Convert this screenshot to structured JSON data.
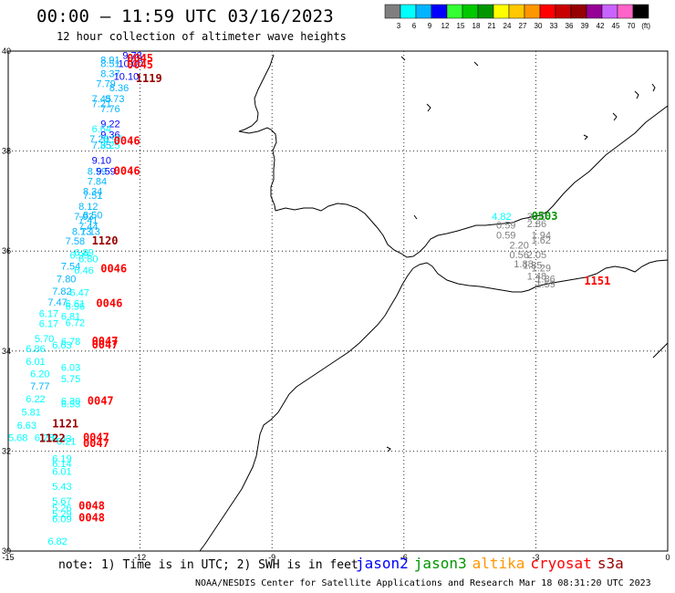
{
  "header": {
    "title": "00:00 – 11:59 UTC 03/16/2023",
    "subtitle": "12 hour collection of altimeter wave heights"
  },
  "colorbar": {
    "unit": "(ft)",
    "bins": [
      {
        "label": "3",
        "color": "#7f7f7f"
      },
      {
        "label": "6",
        "color": "#00ffff"
      },
      {
        "label": "9",
        "color": "#00b4ff"
      },
      {
        "label": "12",
        "color": "#0000ff"
      },
      {
        "label": "15",
        "color": "#33ff33"
      },
      {
        "label": "18",
        "color": "#00c800"
      },
      {
        "label": "21",
        "color": "#009600"
      },
      {
        "label": "24",
        "color": "#ffff00"
      },
      {
        "label": "27",
        "color": "#ffc800"
      },
      {
        "label": "30",
        "color": "#ff9600"
      },
      {
        "label": "33",
        "color": "#ff0000"
      },
      {
        "label": "36",
        "color": "#c80000"
      },
      {
        "label": "39",
        "color": "#960000"
      },
      {
        "label": "42",
        "color": "#960096"
      },
      {
        "label": "45",
        "color": "#c864ff"
      },
      {
        "label": "70",
        "color": "#ff64c8"
      },
      {
        "label": "",
        "color": "#000000"
      }
    ]
  },
  "axes": {
    "x_ticks": [
      "-15",
      "-12",
      "-9",
      "-6",
      "-3",
      "0"
    ],
    "y_ticks": [
      "40",
      "38",
      "36",
      "34",
      "32",
      "30"
    ],
    "xlim": [
      -15,
      0
    ],
    "ylim": [
      30,
      40
    ]
  },
  "footer": {
    "note": "note: 1) Time is in UTC; 2) SWH is in feet",
    "credit": "NOAA/NESDIS Center for Satellite Applications and Research   Mar 18 08:31:20 UTC 2023"
  },
  "legend": {
    "satellites": [
      {
        "name": "jason2",
        "color": "#0000ff"
      },
      {
        "name": "jason3",
        "color": "#009600"
      },
      {
        "name": "altika",
        "color": "#ff9600"
      },
      {
        "name": "cryosat",
        "color": "#ff0000"
      },
      {
        "name": "s3a",
        "color": "#960000"
      }
    ]
  },
  "chart_data": {
    "type": "scatter",
    "observations": [
      {
        "lon": -12.4,
        "lat": 39.92,
        "v": "9.78",
        "c": "#0000ff"
      },
      {
        "lon": -12.9,
        "lat": 39.83,
        "v": "8.91",
        "c": "#00b4ff"
      },
      {
        "lon": -12.9,
        "lat": 39.75,
        "v": "8.51",
        "c": "#00b4ff"
      },
      {
        "lon": -12.5,
        "lat": 39.75,
        "v": "10.00",
        "c": "#0000ff"
      },
      {
        "lon": -12.9,
        "lat": 39.55,
        "v": "8.37",
        "c": "#00b4ff"
      },
      {
        "lon": -12.6,
        "lat": 39.5,
        "v": "10.10",
        "c": "#0000ff"
      },
      {
        "lon": -13.0,
        "lat": 39.35,
        "v": "7.79",
        "c": "#00b4ff"
      },
      {
        "lon": -12.7,
        "lat": 39.27,
        "v": "8.36",
        "c": "#00b4ff"
      },
      {
        "lon": -13.1,
        "lat": 39.05,
        "v": "7.45",
        "c": "#00b4ff"
      },
      {
        "lon": -12.8,
        "lat": 39.05,
        "v": "8.73",
        "c": "#00b4ff"
      },
      {
        "lon": -13.1,
        "lat": 38.95,
        "v": "7.21",
        "c": "#00b4ff"
      },
      {
        "lon": -12.9,
        "lat": 38.85,
        "v": "7.76",
        "c": "#00b4ff"
      },
      {
        "lon": -12.9,
        "lat": 38.55,
        "v": "9.22",
        "c": "#0000ff"
      },
      {
        "lon": -13.1,
        "lat": 38.45,
        "v": "6.64",
        "c": "#00ffff"
      },
      {
        "lon": -12.9,
        "lat": 38.33,
        "v": "9.36",
        "c": "#0000ff"
      },
      {
        "lon": -13.15,
        "lat": 38.25,
        "v": "7.20",
        "c": "#00b4ff"
      },
      {
        "lon": -12.85,
        "lat": 38.25,
        "v": "6.97",
        "c": "#00ffff"
      },
      {
        "lon": -13.1,
        "lat": 38.12,
        "v": "7.35",
        "c": "#00b4ff"
      },
      {
        "lon": -12.9,
        "lat": 38.12,
        "v": "6.25",
        "c": "#00ffff"
      },
      {
        "lon": -13.1,
        "lat": 37.82,
        "v": "9.10",
        "c": "#0000ff"
      },
      {
        "lon": -13.2,
        "lat": 37.6,
        "v": "8.59",
        "c": "#00b4ff"
      },
      {
        "lon": -13.0,
        "lat": 37.6,
        "v": "9.59",
        "c": "#0000ff"
      },
      {
        "lon": -13.2,
        "lat": 37.4,
        "v": "7.84",
        "c": "#00b4ff"
      },
      {
        "lon": -13.3,
        "lat": 37.2,
        "v": "8.34",
        "c": "#00b4ff"
      },
      {
        "lon": -13.3,
        "lat": 37.12,
        "v": "7.51",
        "c": "#00b4ff"
      },
      {
        "lon": -13.4,
        "lat": 36.9,
        "v": "8.12",
        "c": "#00b4ff"
      },
      {
        "lon": -13.5,
        "lat": 36.7,
        "v": "7.93",
        "c": "#00b4ff"
      },
      {
        "lon": -13.3,
        "lat": 36.72,
        "v": "8.50",
        "c": "#00b4ff"
      },
      {
        "lon": -13.4,
        "lat": 36.62,
        "v": "7.41",
        "c": "#00b4ff"
      },
      {
        "lon": -13.4,
        "lat": 36.5,
        "v": "7.44",
        "c": "#00b4ff"
      },
      {
        "lon": -13.55,
        "lat": 36.4,
        "v": "8.13",
        "c": "#00b4ff"
      },
      {
        "lon": -13.35,
        "lat": 36.4,
        "v": "7.13",
        "c": "#00b4ff"
      },
      {
        "lon": -13.7,
        "lat": 36.2,
        "v": "7.58",
        "c": "#00b4ff"
      },
      {
        "lon": -13.5,
        "lat": 35.98,
        "v": "6.89",
        "c": "#00ffff"
      },
      {
        "lon": -13.6,
        "lat": 35.92,
        "v": "6.99",
        "c": "#00ffff"
      },
      {
        "lon": -13.4,
        "lat": 35.85,
        "v": "6.80",
        "c": "#00ffff"
      },
      {
        "lon": -13.8,
        "lat": 35.7,
        "v": "7.54",
        "c": "#00b4ff"
      },
      {
        "lon": -13.5,
        "lat": 35.62,
        "v": "6.46",
        "c": "#00ffff"
      },
      {
        "lon": -13.9,
        "lat": 35.45,
        "v": "7.80",
        "c": "#00b4ff"
      },
      {
        "lon": -14.0,
        "lat": 35.2,
        "v": "7.82",
        "c": "#00b4ff"
      },
      {
        "lon": -13.6,
        "lat": 35.17,
        "v": "6.47",
        "c": "#00ffff"
      },
      {
        "lon": -14.1,
        "lat": 34.98,
        "v": "7.47",
        "c": "#00b4ff"
      },
      {
        "lon": -13.7,
        "lat": 34.95,
        "v": "6.61",
        "c": "#00ffff"
      },
      {
        "lon": -13.7,
        "lat": 34.9,
        "v": "6.96",
        "c": "#00ffff"
      },
      {
        "lon": -14.3,
        "lat": 34.75,
        "v": "6.17",
        "c": "#00ffff"
      },
      {
        "lon": -13.8,
        "lat": 34.7,
        "v": "6.81",
        "c": "#00ffff"
      },
      {
        "lon": -14.3,
        "lat": 34.55,
        "v": "6.17",
        "c": "#00ffff"
      },
      {
        "lon": -13.7,
        "lat": 34.57,
        "v": "6.72",
        "c": "#00ffff"
      },
      {
        "lon": -14.4,
        "lat": 34.25,
        "v": "5.70",
        "c": "#00ffff"
      },
      {
        "lon": -13.8,
        "lat": 34.2,
        "v": "6.78",
        "c": "#00ffff"
      },
      {
        "lon": -14.6,
        "lat": 34.05,
        "v": "6.86",
        "c": "#00ffff"
      },
      {
        "lon": -14.0,
        "lat": 34.12,
        "v": "6.63",
        "c": "#00ffff"
      },
      {
        "lon": -14.6,
        "lat": 33.8,
        "v": "6.01",
        "c": "#00ffff"
      },
      {
        "lon": -14.5,
        "lat": 33.55,
        "v": "6.20",
        "c": "#00ffff"
      },
      {
        "lon": -13.8,
        "lat": 33.68,
        "v": "6.03",
        "c": "#00ffff"
      },
      {
        "lon": -13.8,
        "lat": 33.45,
        "v": "5.75",
        "c": "#00ffff"
      },
      {
        "lon": -14.5,
        "lat": 33.3,
        "v": "7.77",
        "c": "#00b4ff"
      },
      {
        "lon": -14.6,
        "lat": 33.05,
        "v": "6.22",
        "c": "#00ffff"
      },
      {
        "lon": -13.8,
        "lat": 33.0,
        "v": "6.30",
        "c": "#00ffff"
      },
      {
        "lon": -13.8,
        "lat": 32.95,
        "v": "6.53",
        "c": "#00ffff"
      },
      {
        "lon": -14.7,
        "lat": 32.78,
        "v": "5.81",
        "c": "#00ffff"
      },
      {
        "lon": -14.8,
        "lat": 32.52,
        "v": "6.63",
        "c": "#00ffff"
      },
      {
        "lon": -15.0,
        "lat": 32.27,
        "v": "5.68",
        "c": "#00ffff"
      },
      {
        "lon": -14.4,
        "lat": 32.27,
        "v": "6.28",
        "c": "#00ffff"
      },
      {
        "lon": -14.0,
        "lat": 32.25,
        "v": "6.43",
        "c": "#00ffff"
      },
      {
        "lon": -13.9,
        "lat": 32.2,
        "v": "6.21",
        "c": "#00ffff"
      },
      {
        "lon": -14.0,
        "lat": 31.85,
        "v": "6.19",
        "c": "#00ffff"
      },
      {
        "lon": -14.0,
        "lat": 31.75,
        "v": "6.14",
        "c": "#00ffff"
      },
      {
        "lon": -14.0,
        "lat": 31.6,
        "v": "6.01",
        "c": "#00ffff"
      },
      {
        "lon": -14.0,
        "lat": 31.3,
        "v": "5.43",
        "c": "#00ffff"
      },
      {
        "lon": -14.0,
        "lat": 31.0,
        "v": "5.67",
        "c": "#00ffff"
      },
      {
        "lon": -14.0,
        "lat": 30.87,
        "v": "5.26",
        "c": "#00ffff"
      },
      {
        "lon": -14.0,
        "lat": 30.75,
        "v": "5.29",
        "c": "#00ffff"
      },
      {
        "lon": -14.0,
        "lat": 30.65,
        "v": "6.09",
        "c": "#00ffff"
      },
      {
        "lon": -14.1,
        "lat": 30.2,
        "v": "6.82",
        "c": "#00ffff"
      },
      {
        "lon": -4.0,
        "lat": 36.7,
        "v": "4.82",
        "c": "#00ffff"
      },
      {
        "lon": -3.2,
        "lat": 36.7,
        "v": "3.00",
        "c": "#7f7f7f"
      },
      {
        "lon": -3.2,
        "lat": 36.55,
        "v": "2.86",
        "c": "#7f7f7f"
      },
      {
        "lon": -3.9,
        "lat": 36.52,
        "v": "0.59",
        "c": "#7f7f7f"
      },
      {
        "lon": -3.9,
        "lat": 36.32,
        "v": "0.59",
        "c": "#7f7f7f"
      },
      {
        "lon": -3.1,
        "lat": 36.32,
        "v": "1.94",
        "c": "#7f7f7f"
      },
      {
        "lon": -3.1,
        "lat": 36.22,
        "v": "1.62",
        "c": "#7f7f7f"
      },
      {
        "lon": -3.6,
        "lat": 36.12,
        "v": "2.20",
        "c": "#7f7f7f"
      },
      {
        "lon": -3.6,
        "lat": 35.93,
        "v": "0.56",
        "c": "#7f7f7f"
      },
      {
        "lon": -3.2,
        "lat": 35.93,
        "v": "2.05",
        "c": "#7f7f7f"
      },
      {
        "lon": -3.5,
        "lat": 35.75,
        "v": "1.88",
        "c": "#7f7f7f"
      },
      {
        "lon": -3.3,
        "lat": 35.72,
        "v": "1.85",
        "c": "#7f7f7f"
      },
      {
        "lon": -3.1,
        "lat": 35.67,
        "v": "1.29",
        "c": "#7f7f7f"
      },
      {
        "lon": -3.2,
        "lat": 35.5,
        "v": "1.48",
        "c": "#7f7f7f"
      },
      {
        "lon": -3.0,
        "lat": 35.45,
        "v": "1.86",
        "c": "#7f7f7f"
      },
      {
        "lon": -3.0,
        "lat": 35.35,
        "v": "1.59",
        "c": "#7f7f7f"
      }
    ],
    "passes": [
      {
        "lon": -12.3,
        "lat": 39.85,
        "t": "0045",
        "c": "#ff0000"
      },
      {
        "lon": -12.3,
        "lat": 39.73,
        "t": "0045",
        "c": "#ff0000"
      },
      {
        "lon": -12.1,
        "lat": 39.45,
        "t": "1119",
        "c": "#960000"
      },
      {
        "lon": -12.6,
        "lat": 38.2,
        "t": "0046",
        "c": "#ff0000"
      },
      {
        "lon": -12.6,
        "lat": 37.6,
        "t": "0046",
        "c": "#ff0000"
      },
      {
        "lon": -13.1,
        "lat": 36.2,
        "t": "1120",
        "c": "#960000"
      },
      {
        "lon": -12.9,
        "lat": 35.65,
        "t": "0046",
        "c": "#ff0000"
      },
      {
        "lon": -13.0,
        "lat": 34.95,
        "t": "0046",
        "c": "#ff0000"
      },
      {
        "lon": -13.1,
        "lat": 34.2,
        "t": "0047",
        "c": "#ff0000"
      },
      {
        "lon": -13.1,
        "lat": 34.12,
        "t": "0047",
        "c": "#ff0000"
      },
      {
        "lon": -13.2,
        "lat": 33.0,
        "t": "0047",
        "c": "#ff0000"
      },
      {
        "lon": -14.0,
        "lat": 32.55,
        "t": "1121",
        "c": "#960000"
      },
      {
        "lon": -14.3,
        "lat": 32.25,
        "t": "1122",
        "c": "#960000"
      },
      {
        "lon": -13.3,
        "lat": 32.27,
        "t": "0047",
        "c": "#ff0000"
      },
      {
        "lon": -13.3,
        "lat": 32.15,
        "t": "0047",
        "c": "#ff0000"
      },
      {
        "lon": -13.4,
        "lat": 30.9,
        "t": "0048",
        "c": "#ff0000"
      },
      {
        "lon": -13.4,
        "lat": 30.67,
        "t": "0048",
        "c": "#ff0000"
      },
      {
        "lon": -3.1,
        "lat": 36.7,
        "t": "0503",
        "c": "#009600"
      },
      {
        "lon": -1.9,
        "lat": 35.4,
        "t": "1151",
        "c": "#ff0000"
      }
    ]
  }
}
